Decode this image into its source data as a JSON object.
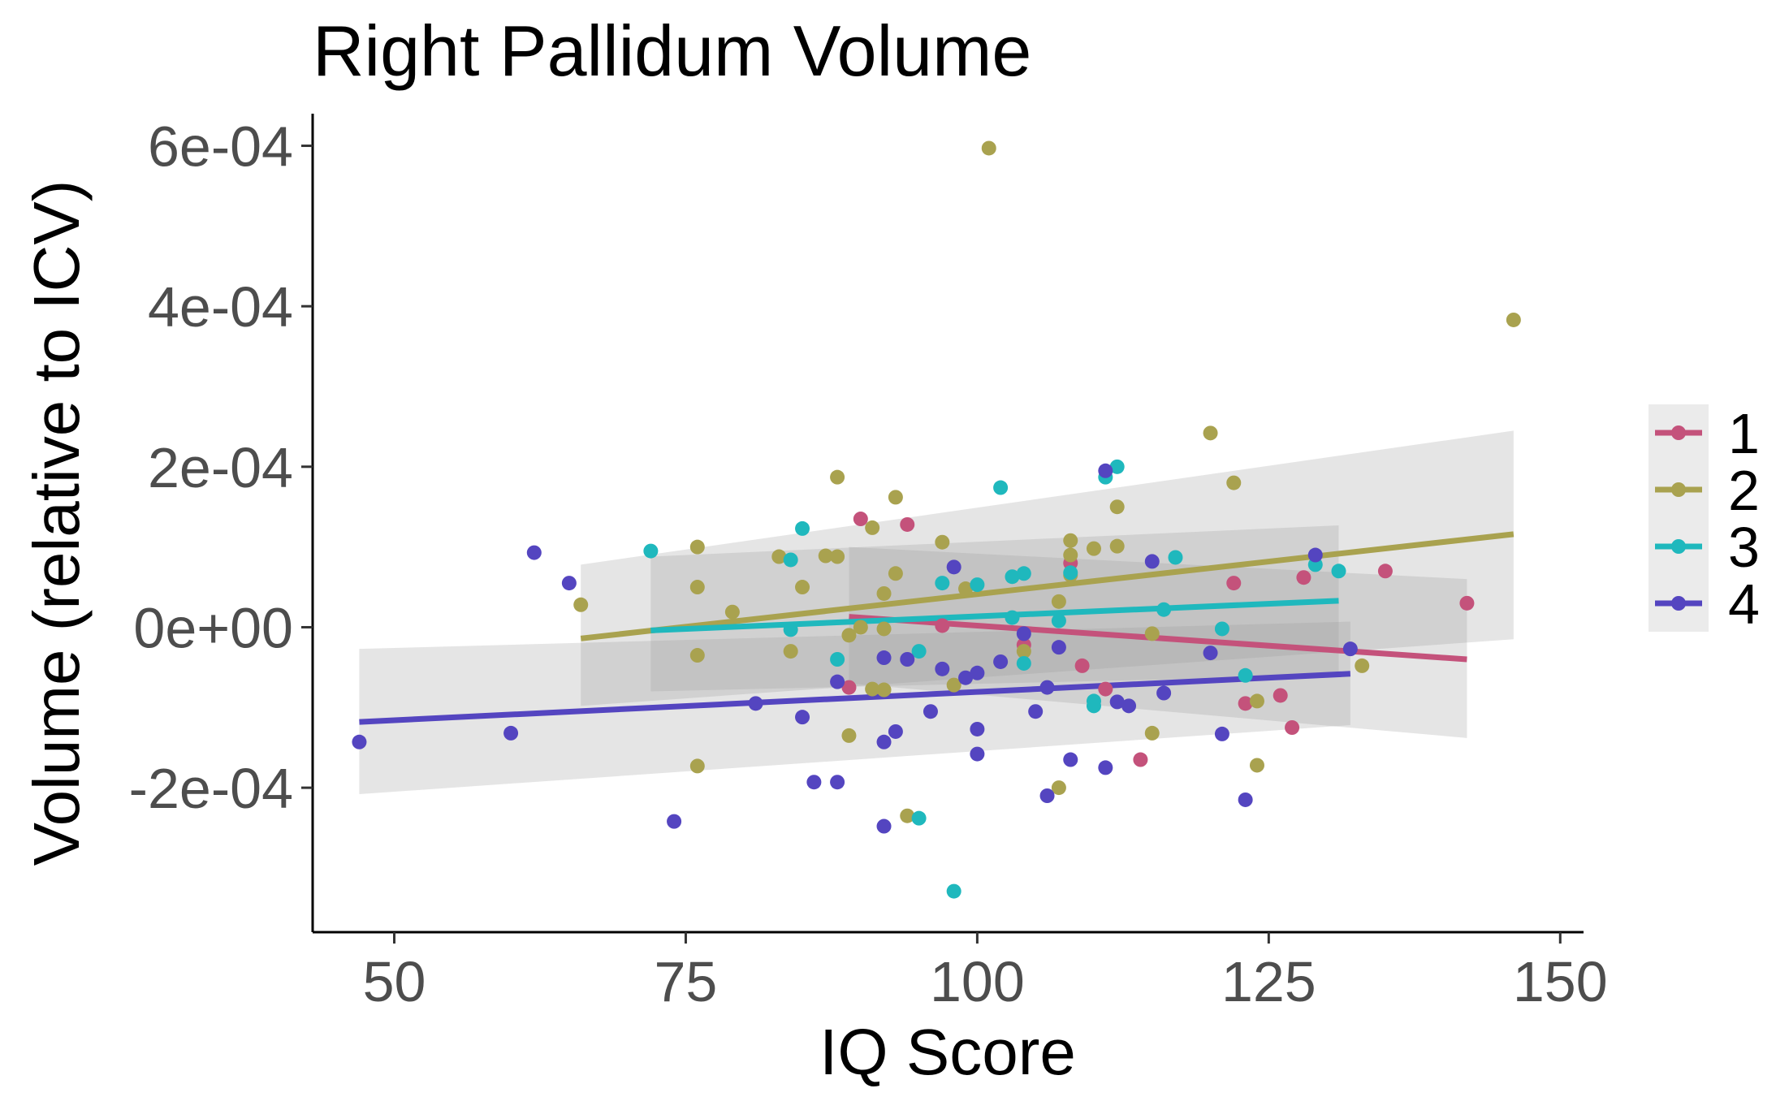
{
  "chart_data": {
    "type": "scatter",
    "title": "Right Pallidum Volume",
    "xlabel": "IQ Score",
    "ylabel": "Volume (relative to ICV)",
    "xlim": [
      43,
      152
    ],
    "ylim": [
      -0.00038,
      0.00064
    ],
    "x_ticks": [
      50,
      75,
      100,
      125,
      150
    ],
    "x_tick_labels": [
      "50",
      "75",
      "100",
      "125",
      "150"
    ],
    "y_ticks": [
      -0.0002,
      0,
      0.0002,
      0.0004,
      0.0006
    ],
    "y_tick_labels": [
      "-2e-04",
      "0e+00",
      "2e-04",
      "4e-04",
      "6e-04"
    ],
    "legend_position": "right",
    "confidence_band_color": "#999999",
    "series": [
      {
        "name": "1",
        "color": "#c4527b",
        "points": [
          [
            89,
            -7.5e-05
          ],
          [
            90,
            0.000135
          ],
          [
            94,
            0.000128
          ],
          [
            97,
            2e-06
          ],
          [
            104,
            -2.2e-05
          ],
          [
            108,
            8e-05
          ],
          [
            109,
            -4.8e-05
          ],
          [
            111,
            -7.7e-05
          ],
          [
            114,
            -0.000165
          ],
          [
            122,
            5.5e-05
          ],
          [
            123,
            -9.5e-05
          ],
          [
            126,
            -8.5e-05
          ],
          [
            127,
            -0.000125
          ],
          [
            128,
            6.2e-05
          ],
          [
            135,
            7e-05
          ],
          [
            142,
            3e-05
          ]
        ],
        "fit": {
          "x": [
            89,
            142
          ],
          "y": [
            1.3e-05,
            -4e-05
          ]
        },
        "band": {
          "x": [
            89,
            142
          ],
          "upper": [
            0.0001,
            6e-05
          ],
          "lower": [
            -7e-05,
            -0.000138
          ]
        }
      },
      {
        "name": "2",
        "color": "#a9a24f",
        "points": [
          [
            66,
            2.8e-05
          ],
          [
            76,
            0.0001
          ],
          [
            76,
            5e-05
          ],
          [
            76,
            -3.5e-05
          ],
          [
            76,
            -0.000173
          ],
          [
            79,
            1.9e-05
          ],
          [
            83,
            8.8e-05
          ],
          [
            84,
            -3e-05
          ],
          [
            85,
            5e-05
          ],
          [
            87,
            8.9e-05
          ],
          [
            88,
            8.8e-05
          ],
          [
            88,
            0.000187
          ],
          [
            89,
            -1e-05
          ],
          [
            89,
            -0.000135
          ],
          [
            90,
            0
          ],
          [
            91,
            0.000124
          ],
          [
            91,
            -7.7e-05
          ],
          [
            92,
            4.2e-05
          ],
          [
            92,
            -2e-06
          ],
          [
            92,
            -7.8e-05
          ],
          [
            93,
            0.000162
          ],
          [
            93,
            6.7e-05
          ],
          [
            94,
            -0.000235
          ],
          [
            97,
            0.000106
          ],
          [
            98,
            -7.2e-05
          ],
          [
            99,
            4.8e-05
          ],
          [
            101,
            0.000597
          ],
          [
            104,
            -3e-05
          ],
          [
            107,
            3.2e-05
          ],
          [
            107,
            -0.0002
          ],
          [
            108,
            0.000108
          ],
          [
            108,
            9e-05
          ],
          [
            108,
            6.5e-05
          ],
          [
            110,
            9.8e-05
          ],
          [
            112,
            0.000101
          ],
          [
            112,
            0.00015
          ],
          [
            115,
            -8e-06
          ],
          [
            115,
            -0.000132
          ],
          [
            120,
            0.000242
          ],
          [
            122,
            0.00018
          ],
          [
            124,
            -9.2e-05
          ],
          [
            124,
            -0.000172
          ],
          [
            133,
            -4.8e-05
          ],
          [
            146,
            0.000383
          ]
        ],
        "fit": {
          "x": [
            66,
            146
          ],
          "y": [
            -1.4e-05,
            0.000116
          ]
        },
        "band": {
          "x": [
            66,
            146
          ],
          "upper": [
            7.8e-05,
            0.000245
          ],
          "lower": [
            -9.8e-05,
            -1.5e-05
          ]
        }
      },
      {
        "name": "3",
        "color": "#1fb8bd",
        "points": [
          [
            72,
            9.5e-05
          ],
          [
            84,
            8.4e-05
          ],
          [
            84,
            -3e-06
          ],
          [
            85,
            0.000123
          ],
          [
            88,
            -4e-05
          ],
          [
            95,
            -3e-05
          ],
          [
            95,
            -0.000238
          ],
          [
            97,
            5.5e-05
          ],
          [
            98,
            -0.000329
          ],
          [
            100,
            5.3e-05
          ],
          [
            102,
            0.000174
          ],
          [
            103,
            6.3e-05
          ],
          [
            103,
            1.2e-05
          ],
          [
            104,
            6.7e-05
          ],
          [
            104,
            -4.5e-05
          ],
          [
            107,
            8e-06
          ],
          [
            108,
            6.8e-05
          ],
          [
            110,
            -9.2e-05
          ],
          [
            110,
            -9.8e-05
          ],
          [
            111,
            0.000187
          ],
          [
            112,
            0.0002
          ],
          [
            116,
            2.2e-05
          ],
          [
            117,
            8.7e-05
          ],
          [
            121,
            -2e-06
          ],
          [
            123,
            -6e-05
          ],
          [
            129,
            7.8e-05
          ],
          [
            131,
            7e-05
          ]
        ],
        "fit": {
          "x": [
            72,
            131
          ],
          "y": [
            -4e-06,
            3.3e-05
          ]
        },
        "band": {
          "x": [
            72,
            131
          ],
          "upper": [
            8.8e-05,
            0.000127
          ],
          "lower": [
            -8e-05,
            -6e-05
          ]
        }
      },
      {
        "name": "4",
        "color": "#5445c0",
        "points": [
          [
            47,
            -0.000143
          ],
          [
            60,
            -0.000132
          ],
          [
            62,
            9.3e-05
          ],
          [
            65,
            5.5e-05
          ],
          [
            74,
            -0.000242
          ],
          [
            81,
            -9.5e-05
          ],
          [
            85,
            -0.000112
          ],
          [
            86,
            -0.000193
          ],
          [
            88,
            -0.000193
          ],
          [
            88,
            -6.8e-05
          ],
          [
            92,
            -3.8e-05
          ],
          [
            92,
            -0.000143
          ],
          [
            92,
            -0.000248
          ],
          [
            93,
            -0.00013
          ],
          [
            94,
            -4e-05
          ],
          [
            96,
            -0.000105
          ],
          [
            97,
            -5.2e-05
          ],
          [
            98,
            7.5e-05
          ],
          [
            99,
            -6.3e-05
          ],
          [
            100,
            -5.7e-05
          ],
          [
            100,
            -0.000127
          ],
          [
            100,
            -0.000158
          ],
          [
            102,
            -4.3e-05
          ],
          [
            104,
            -8e-06
          ],
          [
            105,
            -0.000105
          ],
          [
            106,
            -7.5e-05
          ],
          [
            106,
            -0.00021
          ],
          [
            107,
            -2.5e-05
          ],
          [
            108,
            -0.000165
          ],
          [
            111,
            0.000195
          ],
          [
            111,
            -0.000175
          ],
          [
            112,
            -9.3e-05
          ],
          [
            113,
            -9.8e-05
          ],
          [
            115,
            8.2e-05
          ],
          [
            116,
            -8.2e-05
          ],
          [
            120,
            -3.2e-05
          ],
          [
            121,
            -0.000133
          ],
          [
            123,
            -0.000215
          ],
          [
            129,
            9e-05
          ],
          [
            132,
            -2.7e-05
          ]
        ],
        "fit": {
          "x": [
            47,
            132
          ],
          "y": [
            -0.000118,
            -5.8e-05
          ]
        },
        "band": {
          "x": [
            47,
            132
          ],
          "upper": [
            -2.7e-05,
            7e-06
          ],
          "lower": [
            -0.000208,
            -0.000122
          ]
        }
      }
    ]
  }
}
